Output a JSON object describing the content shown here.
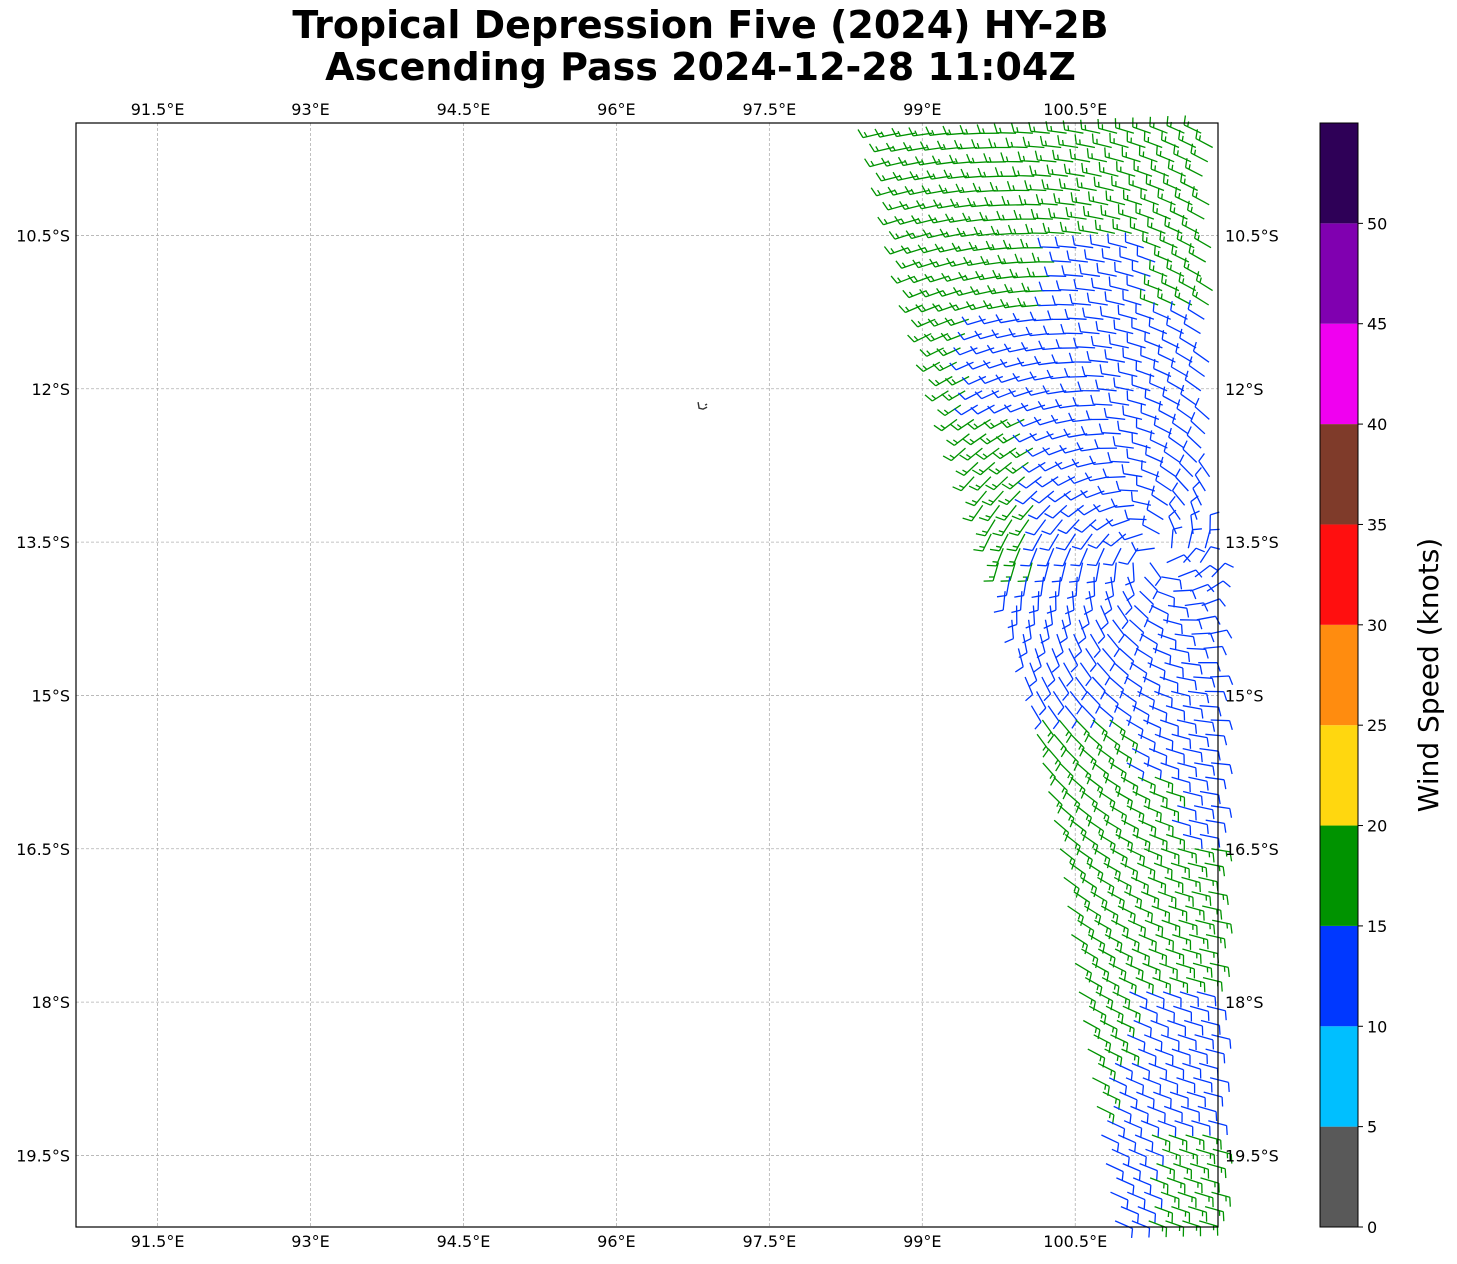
{
  "title": {
    "line1": "Tropical Depression Five (2024) HY-2B",
    "line2": "Ascending Pass 2024-12-28 11:04Z"
  },
  "map": {
    "lon_range": [
      90.7,
      101.9
    ],
    "lat_range": [
      -20.2,
      -9.4
    ],
    "lon_ticks": [
      {
        "value": 91.5,
        "label": "91.5°E"
      },
      {
        "value": 93.0,
        "label": "93°E"
      },
      {
        "value": 94.5,
        "label": "94.5°E"
      },
      {
        "value": 96.0,
        "label": "96°E"
      },
      {
        "value": 97.5,
        "label": "97.5°E"
      },
      {
        "value": 99.0,
        "label": "99°E"
      },
      {
        "value": 100.5,
        "label": "100.5°E"
      }
    ],
    "lat_ticks": [
      {
        "value": -10.5,
        "label": "10.5°S"
      },
      {
        "value": -12.0,
        "label": "12°S"
      },
      {
        "value": -13.5,
        "label": "13.5°S"
      },
      {
        "value": -15.0,
        "label": "15°S"
      },
      {
        "value": -16.5,
        "label": "16.5°S"
      },
      {
        "value": -18.0,
        "label": "18°S"
      },
      {
        "value": -19.5,
        "label": "19.5°S"
      }
    ],
    "gridlines": true,
    "island": {
      "name": "Cocos (Keeling) Islands",
      "lon": 96.85,
      "lat": -12.17
    }
  },
  "colorbar": {
    "label": "Wind Speed (knots)",
    "bins": [
      {
        "from": 0,
        "to": 5,
        "color": "#595959"
      },
      {
        "from": 5,
        "to": 10,
        "color": "#00bfff"
      },
      {
        "from": 10,
        "to": 15,
        "color": "#0038ff"
      },
      {
        "from": 15,
        "to": 20,
        "color": "#009300"
      },
      {
        "from": 20,
        "to": 25,
        "color": "#ffd70f"
      },
      {
        "from": 25,
        "to": 30,
        "color": "#ff8c0f"
      },
      {
        "from": 30,
        "to": 35,
        "color": "#ff0f0f"
      },
      {
        "from": 35,
        "to": 40,
        "color": "#7f3b2a"
      },
      {
        "from": 40,
        "to": 45,
        "color": "#f000f0"
      },
      {
        "from": 45,
        "to": 50,
        "color": "#8000b0"
      },
      {
        "from": 50,
        "to": 55,
        "color": "#2e0057"
      }
    ],
    "ticks": [
      "0",
      "5",
      "10",
      "15",
      "20",
      "25",
      "30",
      "35",
      "40",
      "45",
      "50"
    ]
  },
  "wind_field": {
    "description_source": "HY-2B scatterometer wind barbs",
    "swath_rows": {
      "lat_start": -9.5,
      "lat_end": -20.2,
      "lat_step": 0.14,
      "east_edge_lon": 101.85,
      "west_edge_by_lat": [
        {
          "lat": -9.5,
          "lon": 98.6
        },
        {
          "lat": -11.0,
          "lon": 98.95
        },
        {
          "lat": -12.5,
          "lon": 99.4
        },
        {
          "lat": -13.5,
          "lon": 99.7
        },
        {
          "lat": -15.0,
          "lon": 100.05
        },
        {
          "lat": -16.5,
          "lon": 100.35
        },
        {
          "lat": -18.0,
          "lon": 100.55
        },
        {
          "lat": -20.2,
          "lon": 100.9
        }
      ]
    },
    "center": {
      "lat": -13.6,
      "lon": 101.3
    },
    "speed_zones_knots": [
      {
        "region": "north swath edge",
        "speed": 17
      },
      {
        "region": "near center",
        "speed": 12
      },
      {
        "region": "south band",
        "speed": 16
      },
      {
        "region": "far south east",
        "speed": 13
      }
    ]
  }
}
